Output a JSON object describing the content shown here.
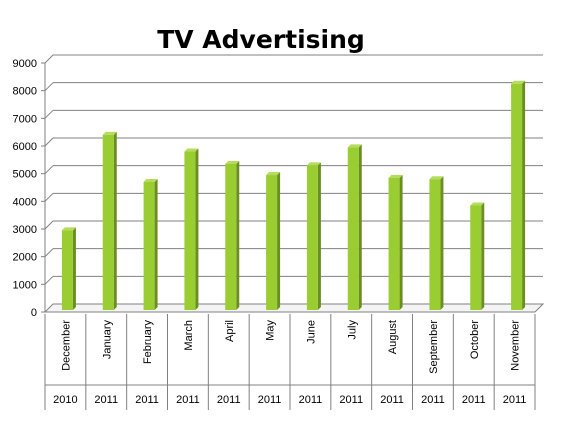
{
  "chart_data": {
    "type": "bar",
    "title": "TV Advertising",
    "xlabel": "",
    "ylabel": "",
    "categories": [
      "December",
      "January",
      "February",
      "March",
      "April",
      "May",
      "June",
      "July",
      "August",
      "September",
      "October",
      "November"
    ],
    "years": [
      "2010",
      "2011",
      "2011",
      "2011",
      "2011",
      "2011",
      "2011",
      "2011",
      "2011",
      "2011",
      "2011",
      "2011"
    ],
    "values": [
      2950,
      6400,
      4700,
      5800,
      5350,
      4950,
      5300,
      5950,
      4850,
      4800,
      3850,
      8250
    ],
    "yticks": [
      "0",
      "1000",
      "2000",
      "3000",
      "4000",
      "5000",
      "6000",
      "7000",
      "8000",
      "9000"
    ],
    "ylim": [
      0,
      9000
    ],
    "grid": true,
    "legend": "none",
    "colors": {
      "bar_front": "#9acd32",
      "bar_side": "#6b8e23",
      "bar_top": "#b5dc5a",
      "grid": "#808080",
      "axis": "#808080"
    }
  }
}
